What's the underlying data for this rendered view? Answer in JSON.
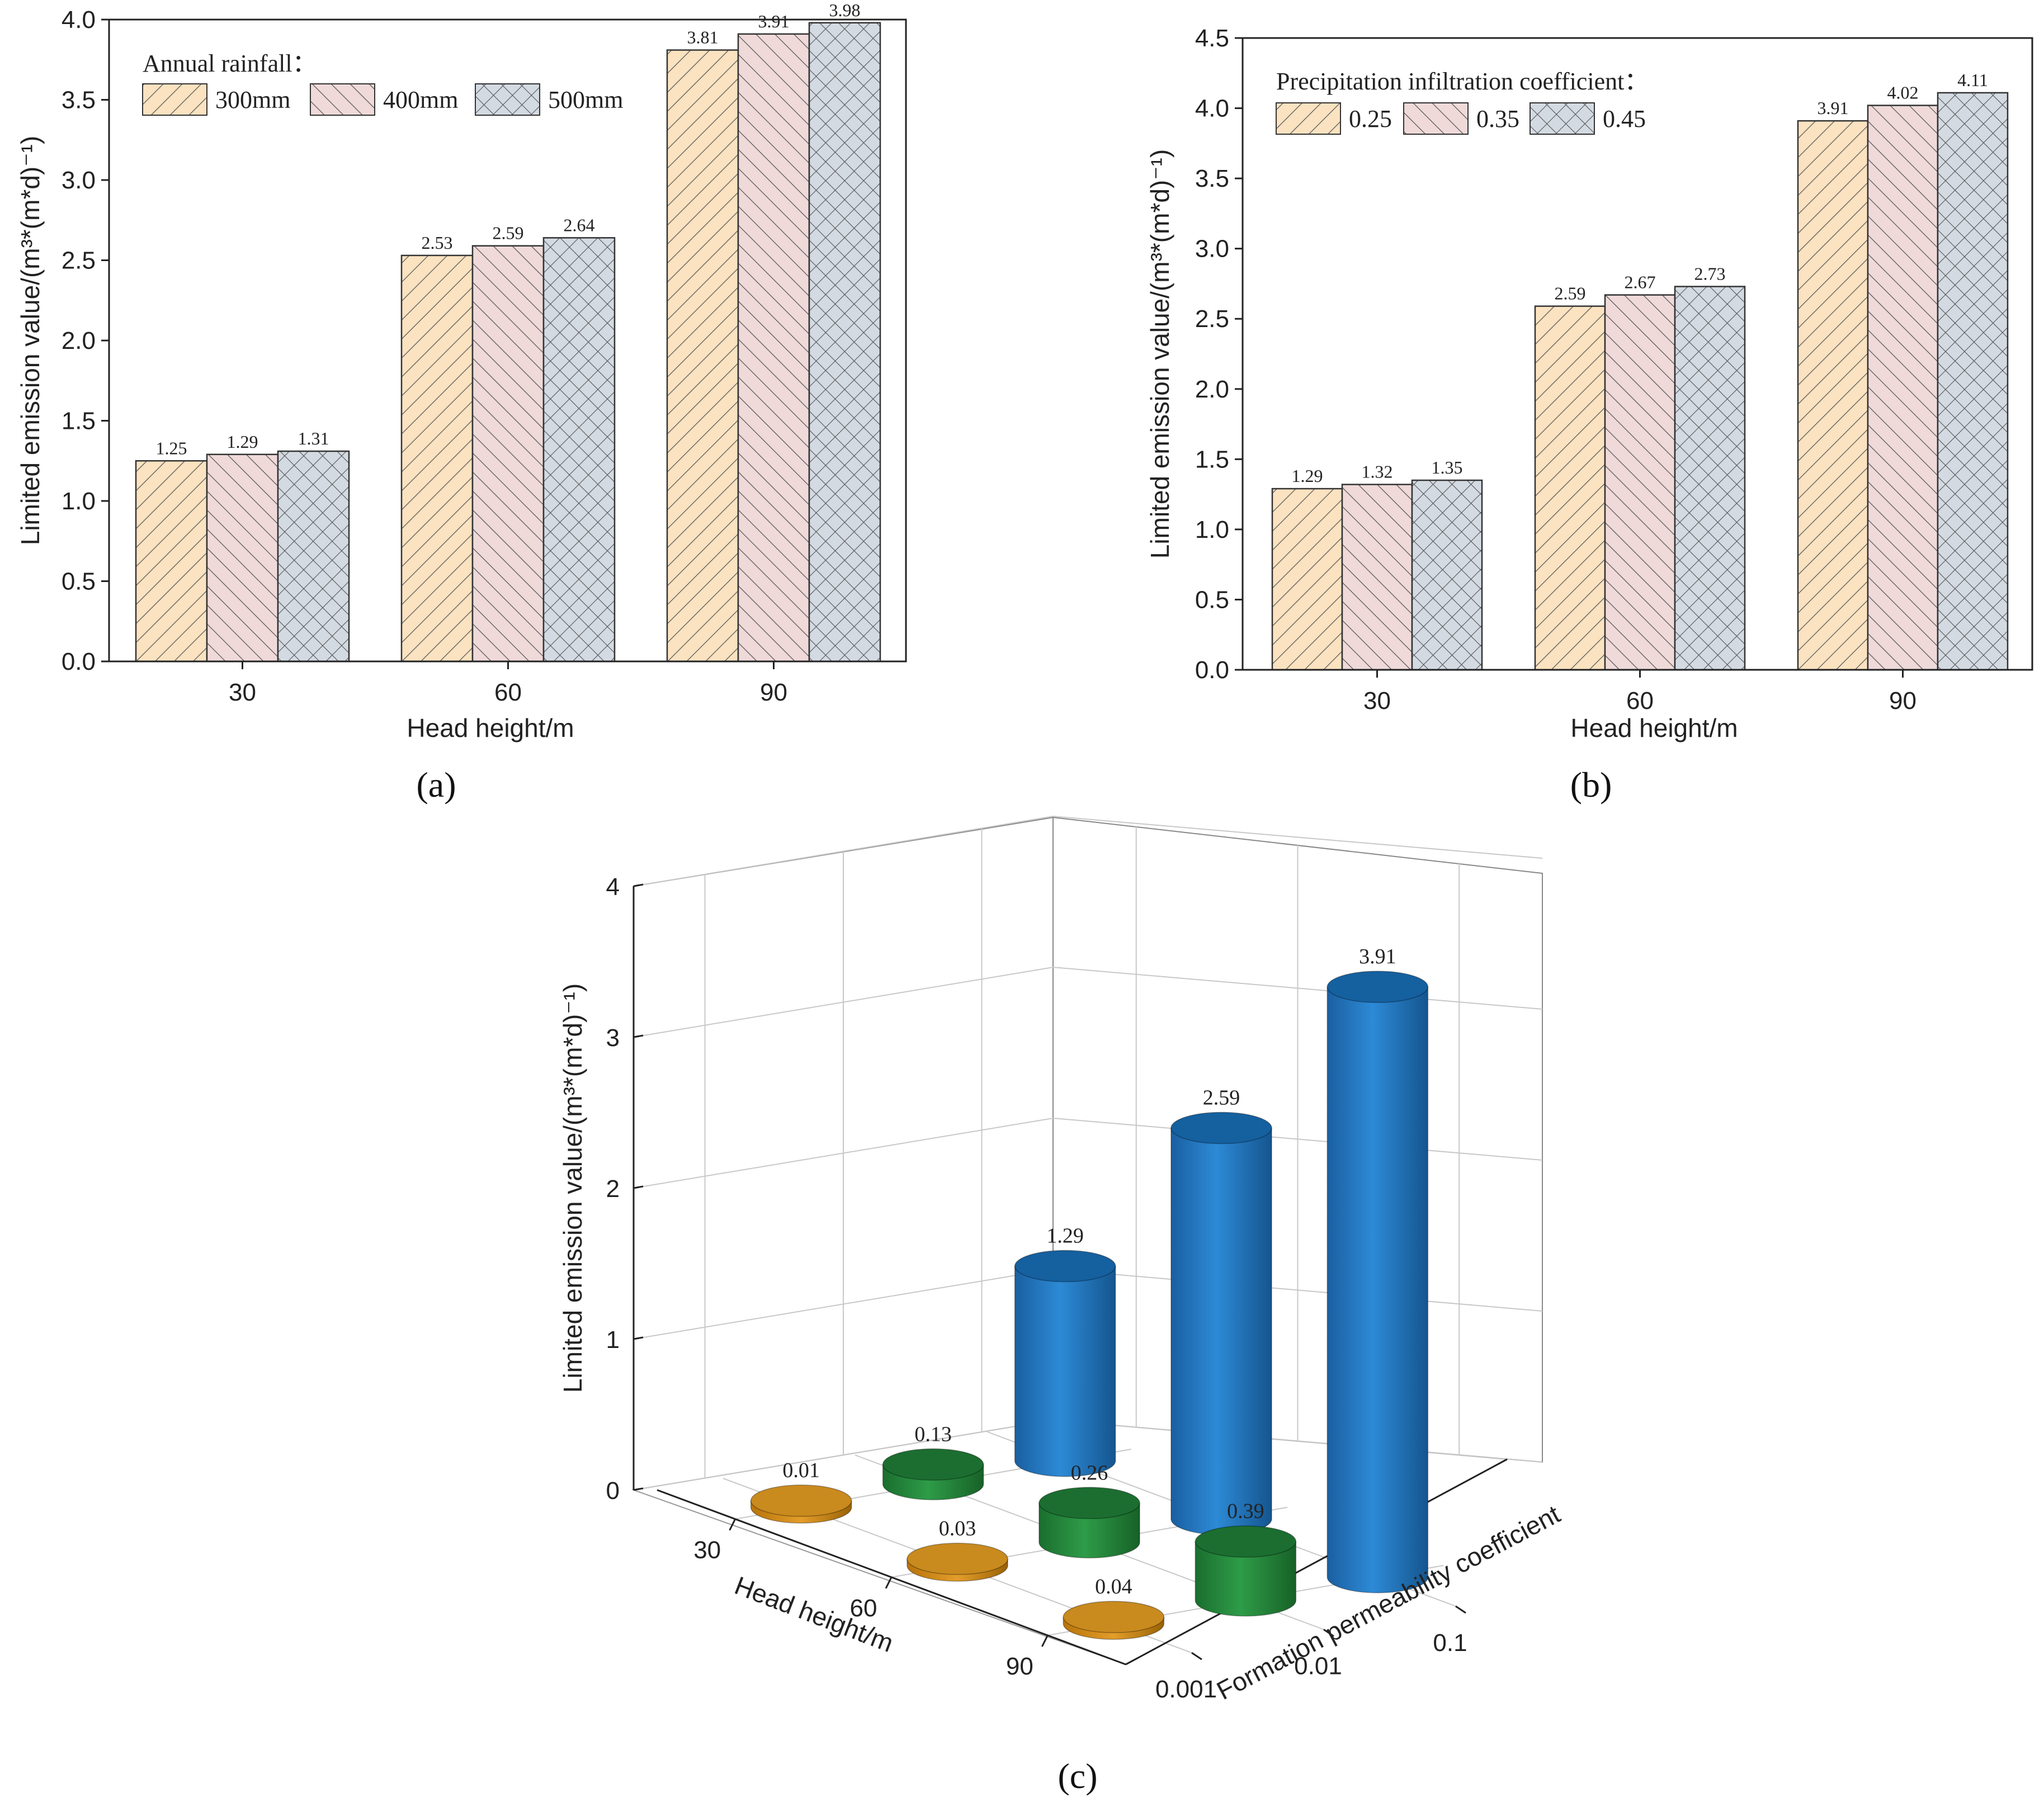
{
  "colors": {
    "bar_s1": "#fbe2c0",
    "bar_s2": "#efd9d9",
    "bar_s3": "#d3dae2",
    "hatch": "#444444",
    "blue": "#1c73c0",
    "green": "#1f8a3a",
    "orange": "#a86a00"
  },
  "chart_data": [
    {
      "type": "bar",
      "panel_label": "(a)",
      "categories": [
        "30",
        "60",
        "90"
      ],
      "xlabel": "Head height/m",
      "ylabel": "Limited emission value/(m³*(m*d)⁻¹)",
      "ylim": [
        0,
        4.0
      ],
      "yticks": [
        "0.0",
        "0.5",
        "1.0",
        "1.5",
        "2.0",
        "2.5",
        "3.0",
        "3.5",
        "4.0"
      ],
      "legend_title": "Annual rainfall：",
      "legend_position": "top-left",
      "series": [
        {
          "name": "300mm",
          "values": [
            1.25,
            2.53,
            3.81
          ],
          "labels": [
            "1.25",
            "2.53",
            "3.81"
          ]
        },
        {
          "name": "400mm",
          "values": [
            1.29,
            2.59,
            3.91
          ],
          "labels": [
            "1.29",
            "2.59",
            "3.91"
          ]
        },
        {
          "name": "500mm",
          "values": [
            1.31,
            2.64,
            3.98
          ],
          "labels": [
            "1.31",
            "2.64",
            "3.98"
          ]
        }
      ]
    },
    {
      "type": "bar",
      "panel_label": "(b)",
      "categories": [
        "30",
        "60",
        "90"
      ],
      "xlabel": "Head height/m",
      "ylabel": "Limited emission value/(m³*(m*d)⁻¹)",
      "ylim": [
        0,
        4.5
      ],
      "yticks": [
        "0.0",
        "0.5",
        "1.0",
        "1.5",
        "2.0",
        "2.5",
        "3.0",
        "3.5",
        "4.0",
        "4.5"
      ],
      "legend_title": "Precipitation infiltration coefficient：",
      "legend_position": "top-left",
      "series": [
        {
          "name": "0.25",
          "values": [
            1.29,
            2.59,
            3.91
          ],
          "labels": [
            "1.29",
            "2.59",
            "3.91"
          ]
        },
        {
          "name": "0.35",
          "values": [
            1.32,
            2.67,
            4.02
          ],
          "labels": [
            "1.32",
            "2.67",
            "4.02"
          ]
        },
        {
          "name": "0.45",
          "values": [
            1.35,
            2.73,
            4.11
          ],
          "labels": [
            "1.35",
            "2.73",
            "4.11"
          ]
        }
      ]
    },
    {
      "type": "bar3d",
      "panel_label": "(c)",
      "xlabel": "Head height/m",
      "ylabel": "Formation permeability coefficient",
      "zlabel": "Limited emission value/(m³*(m*d)⁻¹)",
      "x_categories": [
        "30",
        "60",
        "90"
      ],
      "y_categories": [
        "0.001",
        "0.01",
        "0.1"
      ],
      "zlim": [
        0,
        4
      ],
      "zticks": [
        "0",
        "1",
        "2",
        "3",
        "4"
      ],
      "series": [
        {
          "name": "0.001",
          "values": [
            0.01,
            0.03,
            0.04
          ],
          "labels": [
            "0.01",
            "0.03",
            "0.04"
          ]
        },
        {
          "name": "0.01",
          "values": [
            0.13,
            0.26,
            0.39
          ],
          "labels": [
            "0.13",
            "0.26",
            "0.39"
          ]
        },
        {
          "name": "0.1",
          "values": [
            1.29,
            2.59,
            3.91
          ],
          "labels": [
            "1.29",
            "2.59",
            "3.91"
          ]
        }
      ]
    }
  ]
}
